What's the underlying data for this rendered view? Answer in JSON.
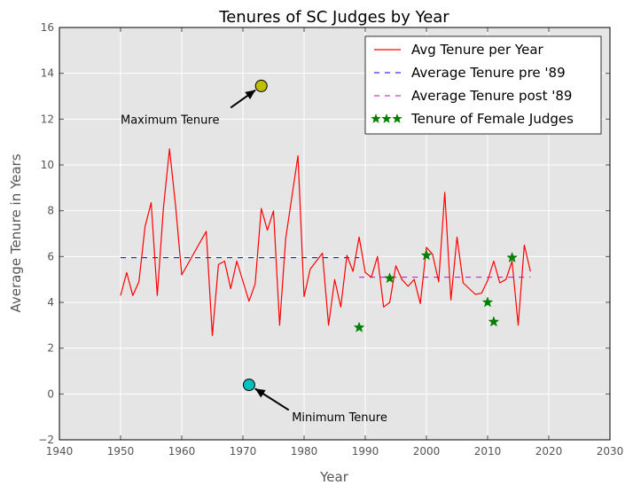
{
  "chart_data": {
    "type": "line",
    "title": "Tenures of SC Judges by Year",
    "xlabel": "Year",
    "ylabel": "Average Tenure in Years",
    "xlim": [
      1940,
      2030
    ],
    "ylim": [
      -2,
      16
    ],
    "xticks": [
      1940,
      1950,
      1960,
      1970,
      1980,
      1990,
      2000,
      2010,
      2020,
      2030
    ],
    "yticks": [
      -2,
      0,
      2,
      4,
      6,
      8,
      10,
      12,
      14,
      16
    ],
    "grid": true,
    "legend_position": "top-right",
    "colors": {
      "background": "#e5e5e5",
      "avg_line": "#ff0000",
      "pre89": "#0000ff",
      "post89": "#cc00cc",
      "female": "#008000",
      "max_marker": "#bfbf00",
      "min_marker": "#00bfbf"
    },
    "series": [
      {
        "name": "Avg Tenure per Year",
        "style": "solid",
        "x": [
          1950,
          1951,
          1952,
          1953,
          1954,
          1955,
          1956,
          1957,
          1958,
          1959,
          1960,
          1964,
          1965,
          1966,
          1967,
          1968,
          1969,
          1971,
          1972,
          1973,
          1974,
          1975,
          1976,
          1977,
          1979,
          1980,
          1981,
          1983,
          1984,
          1985,
          1986,
          1987,
          1988,
          1989,
          1990,
          1991,
          1992,
          1993,
          1994,
          1995,
          1996,
          1997,
          1998,
          1999,
          2000,
          2001,
          2002,
          2003,
          2004,
          2005,
          2006,
          2008,
          2009,
          2010,
          2011,
          2012,
          2013,
          2014,
          2015,
          2016,
          2017
        ],
        "y": [
          4.3,
          5.3,
          4.3,
          4.9,
          7.3,
          8.35,
          4.3,
          8.1,
          10.7,
          8.2,
          5.2,
          7.1,
          2.55,
          5.65,
          5.8,
          4.6,
          5.8,
          4.05,
          4.8,
          8.1,
          7.15,
          8.0,
          3.0,
          6.8,
          10.4,
          4.25,
          5.45,
          6.15,
          3.0,
          5.0,
          3.8,
          6.05,
          5.35,
          6.85,
          5.3,
          5.1,
          6.0,
          3.8,
          4.0,
          5.6,
          5.0,
          4.7,
          5.0,
          3.95,
          6.4,
          6.1,
          4.9,
          8.8,
          4.1,
          6.85,
          4.85,
          4.35,
          4.4,
          4.95,
          5.8,
          4.85,
          5.0,
          5.8,
          3.0,
          6.5,
          5.35
        ]
      },
      {
        "name": "Average Tenure pre '89",
        "style": "dashed",
        "x": [
          1950,
          1989
        ],
        "y": [
          5.95,
          5.95
        ]
      },
      {
        "name": "Average Tenure post '89",
        "style": "dashed",
        "x": [
          1989,
          2017
        ],
        "y": [
          5.1,
          5.1
        ]
      },
      {
        "name": "Tenure of Female Judges",
        "style": "star-markers",
        "x": [
          1989,
          1994,
          2000,
          2010,
          2011,
          2014
        ],
        "y": [
          2.9,
          5.05,
          6.05,
          4.0,
          3.15,
          5.95
        ]
      }
    ],
    "annotations": [
      {
        "text": "Maximum Tenure",
        "x": 1973,
        "y": 13.45,
        "text_x": 1950,
        "text_y": 12.0,
        "marker": "max_marker"
      },
      {
        "text": "Minimum Tenure",
        "x": 1971,
        "y": 0.4,
        "text_x": 1978,
        "text_y": -1.0,
        "marker": "min_marker"
      }
    ]
  }
}
